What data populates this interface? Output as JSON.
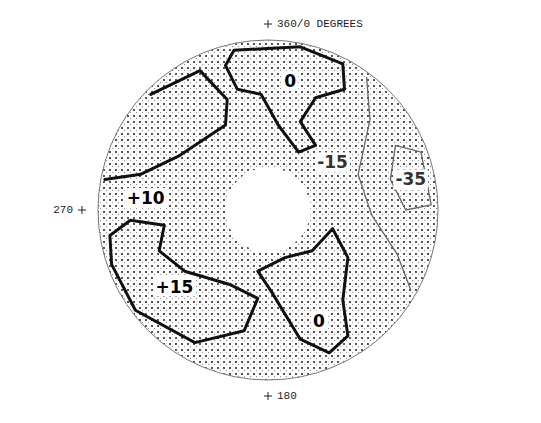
{
  "chart_data": {
    "type": "polar_contour",
    "xlim": [
      -1,
      1
    ],
    "ylim": [
      -1,
      1
    ],
    "inner_radius": 0.25,
    "angle_labels": [
      {
        "value": 0,
        "label": "360/0 DEGREES"
      },
      {
        "value": 270,
        "label": "270"
      },
      {
        "value": 180,
        "label": "180"
      }
    ],
    "contours": [
      {
        "level": 10,
        "label": "+10",
        "closed": false,
        "label_x": -0.72,
        "label_y": 0.07,
        "x": [
          -0.69,
          -0.4,
          -0.24,
          -0.25,
          -0.52,
          -0.75,
          -0.96
        ],
        "y": [
          0.68,
          0.82,
          0.65,
          0.5,
          0.32,
          0.21,
          0.18
        ]
      },
      {
        "level": 15,
        "label": "+15",
        "closed": true,
        "label_x": -0.55,
        "label_y": -0.45,
        "x": [
          -0.93,
          -0.81,
          -0.61,
          -0.64,
          -0.49,
          -0.22,
          -0.06,
          -0.14,
          -0.43,
          -0.78,
          -0.92
        ],
        "y": [
          -0.15,
          -0.06,
          -0.09,
          -0.24,
          -0.36,
          -0.44,
          -0.52,
          -0.71,
          -0.78,
          -0.59,
          -0.32
        ]
      },
      {
        "level": 0,
        "label": "0",
        "closed": true,
        "label_x": 0.13,
        "label_y": 0.76,
        "x": [
          -0.2,
          0.19,
          0.44,
          0.45,
          0.28,
          0.19,
          0.28,
          0.18,
          0.06,
          -0.04,
          -0.18,
          -0.25
        ],
        "y": [
          0.94,
          0.96,
          0.86,
          0.71,
          0.66,
          0.52,
          0.38,
          0.34,
          0.5,
          0.68,
          0.71,
          0.85
        ]
      },
      {
        "level": 0,
        "label": "0",
        "closed": true,
        "label_x": 0.3,
        "label_y": -0.65,
        "x": [
          0.1,
          0.26,
          0.38,
          0.47,
          0.44,
          0.47,
          0.36,
          0.19,
          0.02,
          -0.06
        ],
        "y": [
          -0.28,
          -0.24,
          -0.11,
          -0.28,
          -0.53,
          -0.74,
          -0.84,
          -0.76,
          -0.48,
          -0.36
        ]
      },
      {
        "level": -15,
        "label": "-15",
        "closed": false,
        "label_x": 0.38,
        "label_y": 0.28,
        "x": [
          0.58,
          0.6,
          0.53,
          0.61,
          0.76,
          0.84
        ],
        "y": [
          0.78,
          0.53,
          0.21,
          -0.03,
          -0.26,
          -0.47
        ]
      },
      {
        "level": -35,
        "label": "-35",
        "closed": true,
        "label_x": 0.84,
        "label_y": 0.18,
        "x": [
          0.75,
          0.9,
          0.96,
          0.81,
          0.72
        ],
        "y": [
          0.38,
          0.34,
          0.03,
          0.0,
          0.18
        ]
      }
    ]
  }
}
